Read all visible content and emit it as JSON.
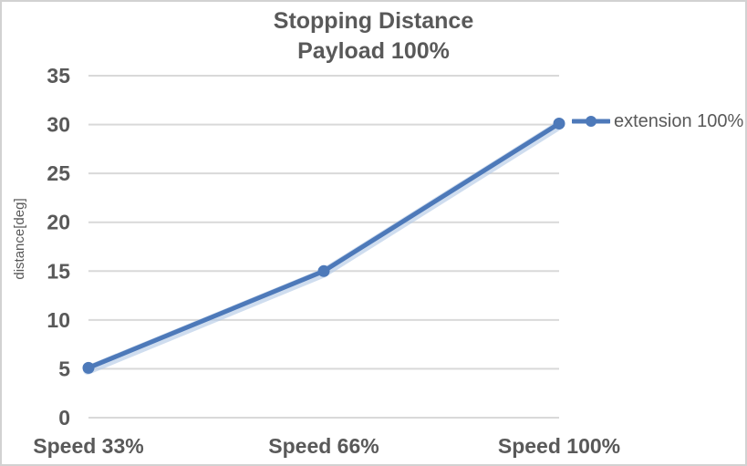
{
  "chart_data": {
    "type": "line",
    "title": "Stopping Distance",
    "subtitle": "Payload 100%",
    "ylabel": "distance[deg]",
    "xlabel": "",
    "categories": [
      "Speed 33%",
      "Speed 66%",
      "Speed 100%"
    ],
    "series": [
      {
        "name": "extension 100%",
        "values": [
          5.1,
          15,
          30.1
        ],
        "marker": "circle"
      }
    ],
    "ylim": [
      0,
      35
    ],
    "yticks": [
      0,
      5,
      10,
      15,
      20,
      25,
      30,
      35
    ],
    "ytick_interval": 5,
    "grid": "horizontal gridlines on",
    "legend_position": "right of plot, beside last data point",
    "colors": {
      "series_line": "#4d79b9",
      "series_glow": "#b5cbe7",
      "gridline": "#d9d9d9",
      "text": "#595959",
      "chart_border": "#d2d2d2",
      "background": "#ffffff"
    }
  }
}
